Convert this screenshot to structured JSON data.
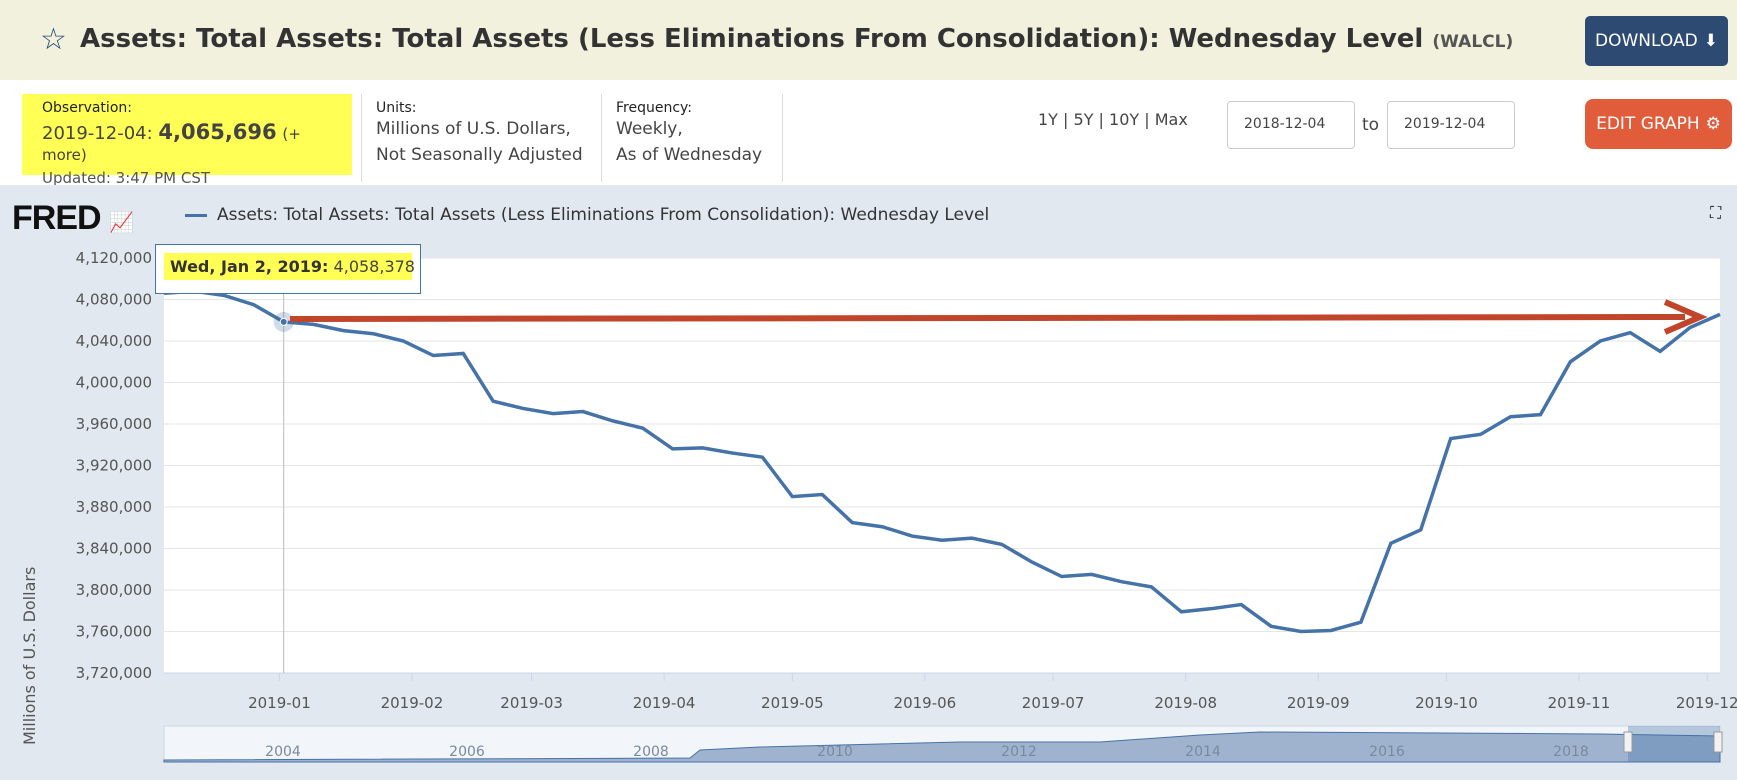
{
  "header": {
    "title": "Assets: Total Assets: Total Assets (Less Eliminations From Consolidation): Wednesday Level",
    "series_id": "(WALCL)",
    "download_label": "DOWNLOAD"
  },
  "info": {
    "observation_label": "Observation:",
    "observation_date": "2019-12-04:",
    "observation_value": "4,065,696",
    "more": "(+ more)",
    "updated": "Updated: 3:47 PM CST",
    "units_label": "Units:",
    "units_line1": "Millions of U.S. Dollars,",
    "units_line2": "Not Seasonally Adjusted",
    "frequency_label": "Frequency:",
    "frequency_line1": "Weekly,",
    "frequency_line2": "As of Wednesday",
    "ranges": "1Y | 5Y | 10Y | Max",
    "start_date": "2018-12-04",
    "to": "to",
    "end_date": "2019-12-04",
    "edit_label": "EDIT GRAPH"
  },
  "chart": {
    "logo": "FRED",
    "legend": "Assets: Total Assets: Total Assets (Less Eliminations From Consolidation): Wednesday Level",
    "tooltip_date": "Wed, Jan 2, 2019:",
    "tooltip_value": "4,058,378"
  },
  "navigator": {
    "years": [
      "2004",
      "2006",
      "2008",
      "2010",
      "2012",
      "2014",
      "2016",
      "2018"
    ]
  },
  "chart_data": {
    "type": "line",
    "title": "Assets: Total Assets: Total Assets (Less Eliminations From Consolidation): Wednesday Level",
    "ylabel": "Millions of U.S. Dollars",
    "ylim": [
      3720000,
      4120000
    ],
    "yticks": [
      "4,120,000",
      "4,080,000",
      "4,040,000",
      "4,000,000",
      "3,960,000",
      "3,920,000",
      "3,880,000",
      "3,840,000",
      "3,800,000",
      "3,760,000",
      "3,720,000"
    ],
    "xticks": [
      "2019-01",
      "2019-02",
      "2019-03",
      "2019-04",
      "2019-05",
      "2019-06",
      "2019-07",
      "2019-08",
      "2019-09",
      "2019-10",
      "2019-11",
      "2019-12"
    ],
    "start": "2018-12-05",
    "frequency_days": 7,
    "values": [
      4086000,
      4088000,
      4084000,
      4075000,
      4058378,
      4056000,
      4050000,
      4047000,
      4040000,
      4026000,
      4028000,
      3982000,
      3975000,
      3970000,
      3972000,
      3963000,
      3956000,
      3936000,
      3937000,
      3932000,
      3928000,
      3890000,
      3892000,
      3865000,
      3861000,
      3852000,
      3848000,
      3850000,
      3844000,
      3827000,
      3813000,
      3815000,
      3808000,
      3803000,
      3779000,
      3782000,
      3786000,
      3765000,
      3760000,
      3761000,
      3769000,
      3845000,
      3858000,
      3946000,
      3950000,
      3967000,
      3969000,
      4020000,
      4040000,
      4048000,
      4030000,
      4053000,
      4065696
    ]
  },
  "colors": {
    "line": "#4572a7",
    "arrow": "#c0452b",
    "highlight": "#ffff55"
  }
}
